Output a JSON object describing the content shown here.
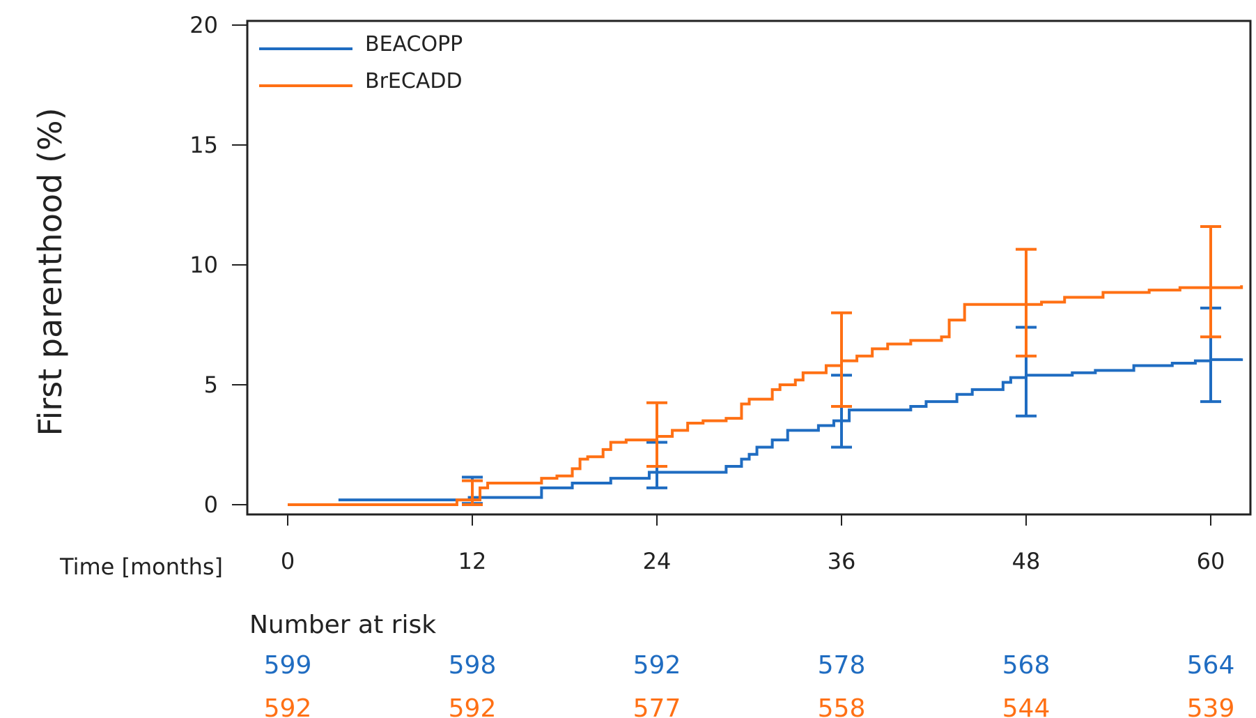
{
  "chart_data": {
    "type": "line",
    "title": "",
    "xlabel": "Time [months]",
    "ylabel": "First parenthood (%)",
    "xlim": [
      0,
      62
    ],
    "ylim": [
      0,
      20
    ],
    "x_ticks": [
      0,
      12,
      24,
      36,
      48,
      60
    ],
    "y_ticks": [
      0,
      5,
      10,
      15,
      20
    ],
    "legend_position": "top-left",
    "grid": false,
    "colors": {
      "BEACOPP": "#1f6cc1",
      "BrECADD": "#ff7014"
    },
    "series": [
      {
        "name": "BEACOPP",
        "color": "#1f6cc1",
        "step": true,
        "x": [
          3.3,
          11.5,
          11.8,
          16.5,
          18.5,
          21.0,
          23.5,
          28.5,
          29.5,
          30.0,
          30.5,
          31.5,
          32.5,
          34.5,
          35.5,
          36.5,
          40.5,
          41.5,
          43.5,
          44.5,
          46.5,
          47.0,
          48.0,
          51.0,
          52.5,
          55.0,
          57.5,
          59.0,
          60.0,
          62.0
        ],
        "y": [
          0.2,
          0.2,
          0.3,
          0.7,
          0.9,
          1.1,
          1.35,
          1.6,
          1.9,
          2.1,
          2.4,
          2.7,
          3.1,
          3.3,
          3.5,
          3.95,
          4.1,
          4.3,
          4.6,
          4.8,
          5.1,
          5.3,
          5.4,
          5.5,
          5.6,
          5.8,
          5.9,
          6.0,
          6.05,
          6.1
        ],
        "ci_at": [
          12,
          24,
          36,
          48,
          60
        ],
        "ci_low": [
          0.05,
          0.7,
          2.4,
          3.7,
          4.3
        ],
        "ci_high": [
          1.15,
          2.6,
          5.4,
          7.4,
          8.2
        ]
      },
      {
        "name": "BrECADD",
        "color": "#ff7014",
        "step": true,
        "x": [
          0,
          10.5,
          11.0,
          12.5,
          13.0,
          16.5,
          17.5,
          18.5,
          19.0,
          19.5,
          20.5,
          21.0,
          22.0,
          24.0,
          25.0,
          26.0,
          27.0,
          28.5,
          29.5,
          30.0,
          31.5,
          32.0,
          33.0,
          33.5,
          35.0,
          36.0,
          37.0,
          38.0,
          39.0,
          40.5,
          42.5,
          43.0,
          44.0,
          47.5,
          49.0,
          50.5,
          53.0,
          56.0,
          58.0,
          62.0
        ],
        "y": [
          0,
          0,
          0.2,
          0.7,
          0.9,
          1.1,
          1.2,
          1.5,
          1.9,
          2.0,
          2.3,
          2.6,
          2.7,
          2.85,
          3.1,
          3.4,
          3.5,
          3.6,
          4.2,
          4.4,
          4.8,
          5.0,
          5.2,
          5.5,
          5.8,
          6.0,
          6.2,
          6.5,
          6.7,
          6.85,
          7.0,
          7.7,
          8.35,
          8.35,
          8.45,
          8.65,
          8.85,
          8.95,
          9.05,
          9.15
        ],
        "ci_at": [
          12,
          24,
          36,
          48,
          60
        ],
        "ci_low": [
          0.0,
          1.6,
          4.1,
          6.2,
          7.0
        ],
        "ci_high": [
          1.0,
          4.25,
          8.0,
          10.65,
          11.6
        ]
      }
    ],
    "number_at_risk": {
      "title": "Number at risk",
      "rows": [
        {
          "name": "BEACOPP",
          "color": "#1f6cc1",
          "values": [
            "599",
            "598",
            "592",
            "578",
            "568",
            "564"
          ]
        },
        {
          "name": "BrECADD",
          "color": "#ff7014",
          "values": [
            "592",
            "592",
            "577",
            "558",
            "544",
            "539"
          ]
        }
      ]
    }
  }
}
